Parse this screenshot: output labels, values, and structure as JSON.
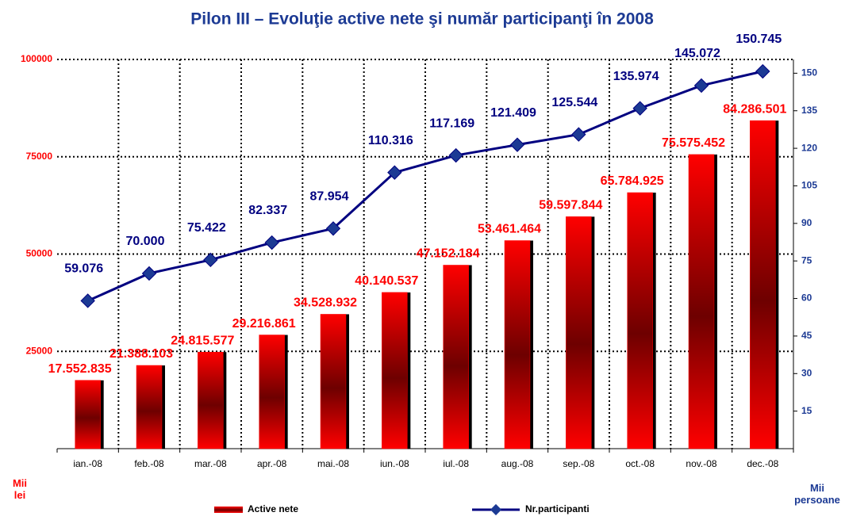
{
  "chart_data": {
    "type": "combo",
    "title": "Pilon III – Evoluţie active nete şi număr participanţi în 2008",
    "y_label": "Mii lei",
    "y2_label": "Mii persoane",
    "categories": [
      "ian.-08",
      "feb.-08",
      "mar.-08",
      "apr.-08",
      "mai.-08",
      "iun.-08",
      "iul.-08",
      "aug.-08",
      "sep.-08",
      "oct.-08",
      "nov.-08",
      "dec.-08"
    ],
    "series": [
      {
        "name": "Active nete",
        "type": "bar",
        "axis": "y",
        "color": "#ff0000",
        "values": [
          17552.835,
          21388.103,
          24815.577,
          29216.861,
          34528.932,
          40140.537,
          47152.184,
          53461.464,
          59597.844,
          65784.925,
          75575.452,
          84286.501
        ],
        "value_labels": [
          "17.552.835",
          "21.388.103",
          "24.815.577",
          "29.216.861",
          "34.528.932",
          "40.140.537",
          "47.152.184",
          "53.461.464",
          "59.597.844",
          "65.784.925",
          "75.575.452",
          "84.286.501"
        ]
      },
      {
        "name": "Nr.participanti",
        "type": "line",
        "axis": "y2",
        "color": "#000080",
        "values": [
          59.076,
          70.0,
          75.422,
          82.337,
          87.954,
          110.316,
          117.169,
          121.409,
          125.544,
          135.974,
          145.072,
          150.745
        ],
        "value_labels": [
          "59.076",
          "70.000",
          "75.422",
          "82.337",
          "87.954",
          "110.316",
          "117.169",
          "121.409",
          "125.544",
          "135.974",
          "145.072",
          "150.745"
        ]
      }
    ],
    "ylim": [
      0,
      100000
    ],
    "yticks": [
      25000,
      50000,
      75000,
      100000
    ],
    "y2lim": [
      0,
      155.5
    ],
    "y2ticks": [
      15,
      30,
      45,
      60,
      75,
      90,
      105,
      120,
      135,
      150
    ],
    "grid": true,
    "legend": "bottom"
  }
}
